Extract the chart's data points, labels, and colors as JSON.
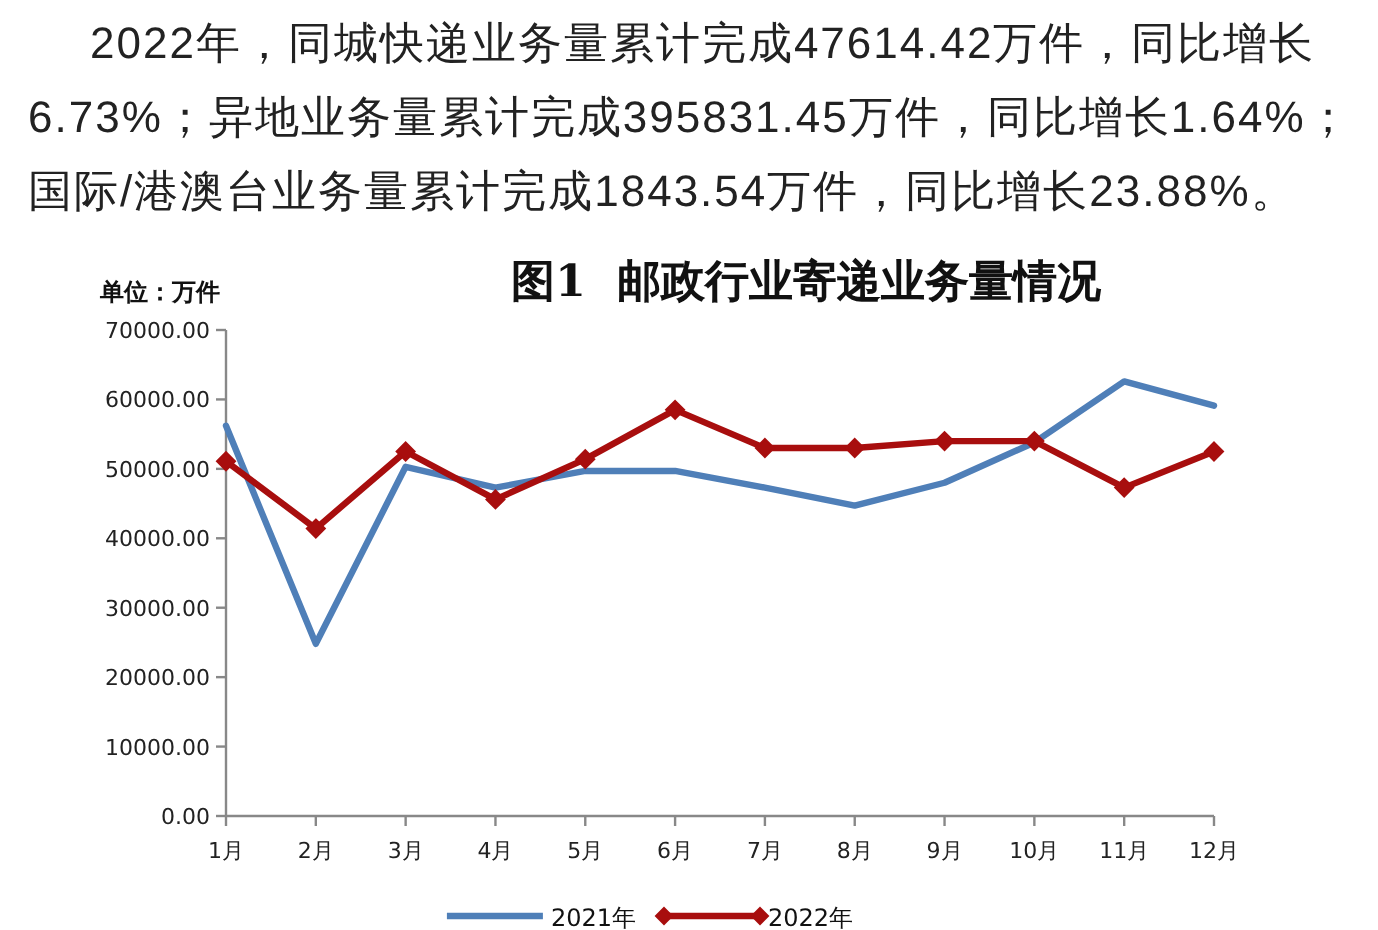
{
  "chart_data": {
    "type": "line",
    "title": "图1  邮政行业寄递业务量情况",
    "ylabel": "单位：万件",
    "annotations": [
      "2022年，同城快递业务量累计完成47614.42万件，同比增长6.73%；异地业务量累计完成395831.45万件，同比增长1.64%；国际/港澳台业务量累计完成1843.54万件，同比增长23.88%。"
    ],
    "categories": [
      "1月",
      "2月",
      "3月",
      "4月",
      "5月",
      "6月",
      "7月",
      "8月",
      "9月",
      "10月",
      "11月",
      "12月"
    ],
    "series": [
      {
        "name": "2021年",
        "color": "#4f7fb8",
        "values": [
          56200,
          24800,
          50300,
          47300,
          49700,
          49700,
          47300,
          44700,
          48000,
          53800,
          62600,
          59100
        ]
      },
      {
        "name": "2022年",
        "color": "#a80e0e",
        "marker": "diamond",
        "values": [
          51100,
          41400,
          52500,
          45600,
          51400,
          58500,
          53000,
          53000,
          54000,
          54000,
          47300,
          52500
        ]
      }
    ],
    "ylim": [
      0,
      70000
    ],
    "yticks": [
      {
        "value": 0,
        "label": "0.00"
      },
      {
        "value": 10000,
        "label": "10000.00"
      },
      {
        "value": 20000,
        "label": "20000.00"
      },
      {
        "value": 30000,
        "label": "30000.00"
      },
      {
        "value": 40000,
        "label": "40000.00"
      },
      {
        "value": 50000,
        "label": "50000.00"
      },
      {
        "value": 60000,
        "label": "60000.00"
      },
      {
        "value": 70000,
        "label": "70000.00"
      }
    ],
    "legend": "bottom"
  }
}
